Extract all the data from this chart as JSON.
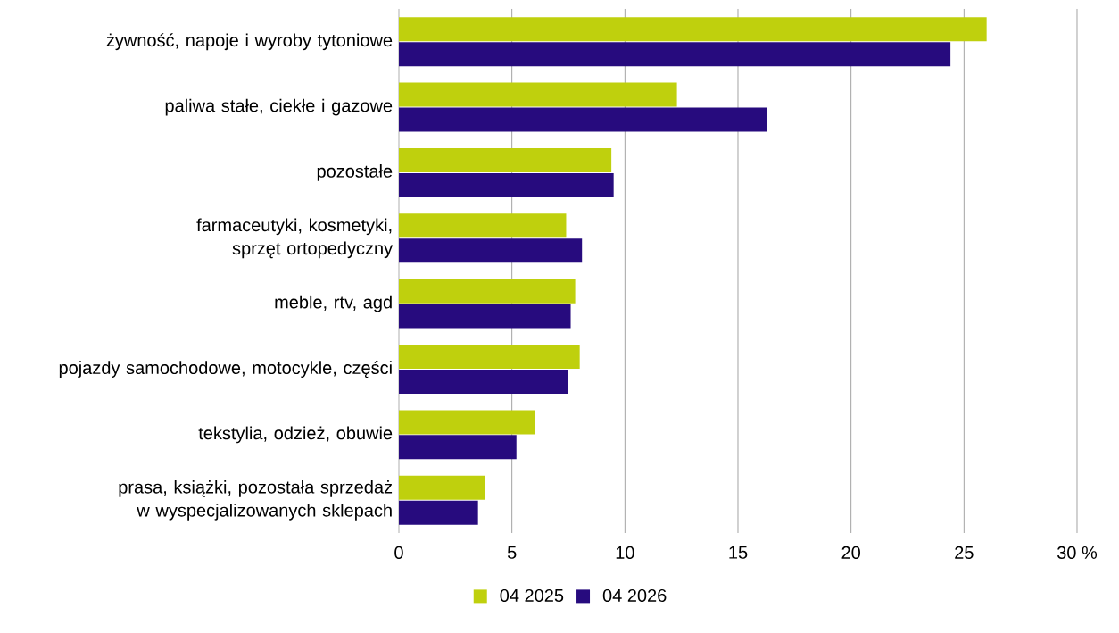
{
  "chart_data": {
    "type": "bar",
    "orientation": "horizontal",
    "categories": [
      "żywność, napoje i wyroby tytoniowe",
      "paliwa stałe, ciekłe i gazowe",
      "pozostałe",
      "farmaceutyki, kosmetyki, sprzęt ortopedyczny",
      "meble, rtv, agd",
      "pojazdy samochodowe, motocykle, części",
      "tekstylia, odzież, obuwie",
      "prasa, książki, pozostała sprzedaż w wyspecjalizowanych sklepach"
    ],
    "series": [
      {
        "name": "04 2025",
        "color": "#bfd00d",
        "values": [
          26.0,
          12.3,
          9.4,
          7.4,
          7.8,
          8.0,
          6.0,
          3.8
        ]
      },
      {
        "name": "04 2026",
        "color": "#270b7e",
        "values": [
          24.4,
          16.3,
          9.5,
          8.1,
          7.6,
          7.5,
          5.2,
          3.5
        ]
      }
    ],
    "xlim": [
      0,
      30
    ],
    "xticks": [
      0,
      5,
      10,
      15,
      20,
      25,
      {
        "value": 30,
        "label": "30 %"
      }
    ],
    "grid": "x",
    "legend": "bottom"
  }
}
